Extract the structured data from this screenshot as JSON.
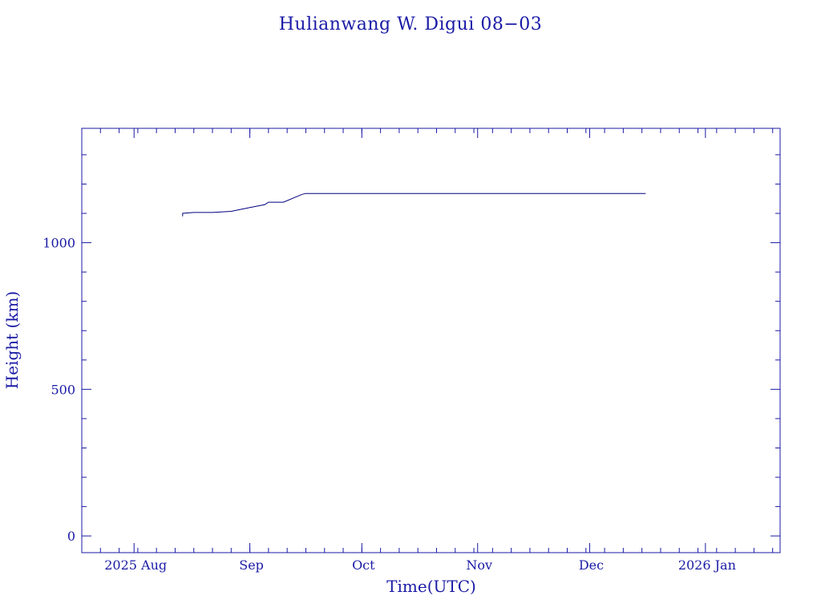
{
  "colors": {
    "axis": "#1a1aa6",
    "line": "#000080",
    "background": "#ffffff"
  },
  "chart_data": {
    "type": "line",
    "title": "Hulianwang W. Digui 08−03",
    "xlabel": "Time(UTC)",
    "ylabel": "Height (km)",
    "x_range": [
      "2025-07-18",
      "2026-01-21"
    ],
    "y_range": [
      -57,
      1390
    ],
    "x_ticks": [
      {
        "date": "2025-08-01",
        "label": "2025 Aug"
      },
      {
        "date": "2025-09-01",
        "label": "Sep"
      },
      {
        "date": "2025-10-01",
        "label": "Oct"
      },
      {
        "date": "2025-11-01",
        "label": "Nov"
      },
      {
        "date": "2025-12-01",
        "label": "Dec"
      },
      {
        "date": "2026-01-01",
        "label": "2026 Jan"
      }
    ],
    "y_ticks": [
      0,
      500,
      1000
    ],
    "y_minor_ticks": [
      100,
      200,
      300,
      400,
      600,
      700,
      800,
      900,
      1100,
      1200,
      1300
    ],
    "grid": false,
    "series": [
      {
        "points": [
          {
            "x": "2025-08-14",
            "y": 1090
          },
          {
            "x": "2025-08-14",
            "y": 1100
          },
          {
            "x": "2025-08-17",
            "y": 1103
          },
          {
            "x": "2025-08-22",
            "y": 1103
          },
          {
            "x": "2025-08-27",
            "y": 1107
          },
          {
            "x": "2025-09-01",
            "y": 1120
          },
          {
            "x": "2025-09-05",
            "y": 1130
          },
          {
            "x": "2025-09-06",
            "y": 1138
          },
          {
            "x": "2025-09-10",
            "y": 1138
          },
          {
            "x": "2025-09-15",
            "y": 1165
          },
          {
            "x": "2025-09-16",
            "y": 1168
          },
          {
            "x": "2025-10-01",
            "y": 1168
          },
          {
            "x": "2025-11-01",
            "y": 1168
          },
          {
            "x": "2025-12-01",
            "y": 1168
          },
          {
            "x": "2025-12-16",
            "y": 1168
          }
        ]
      }
    ]
  }
}
